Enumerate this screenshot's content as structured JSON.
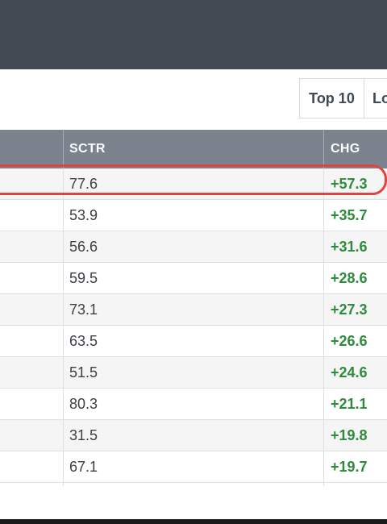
{
  "toolbar": {
    "buttons": [
      {
        "label": "Top 10"
      },
      {
        "label": "Lo"
      }
    ]
  },
  "table": {
    "headers": {
      "sctr": "SCTR",
      "chg": "CHG"
    },
    "rows": [
      {
        "sctr": "77.6",
        "chg": "+57.3"
      },
      {
        "sctr": "53.9",
        "chg": "+35.7"
      },
      {
        "sctr": "56.6",
        "chg": "+31.6"
      },
      {
        "sctr": "59.5",
        "chg": "+28.6"
      },
      {
        "sctr": "73.1",
        "chg": "+27.3"
      },
      {
        "sctr": "63.5",
        "chg": "+26.6"
      },
      {
        "sctr": "51.5",
        "chg": "+24.6"
      },
      {
        "sctr": "80.3",
        "chg": "+21.1"
      },
      {
        "sctr": "31.5",
        "chg": "+19.8"
      },
      {
        "sctr": "67.1",
        "chg": "+19.7"
      }
    ]
  },
  "colors": {
    "header_bar": "#444a54",
    "table_header": "#7b838e",
    "positive_change": "#2e8b3c",
    "highlight_ring": "#e0443e"
  }
}
